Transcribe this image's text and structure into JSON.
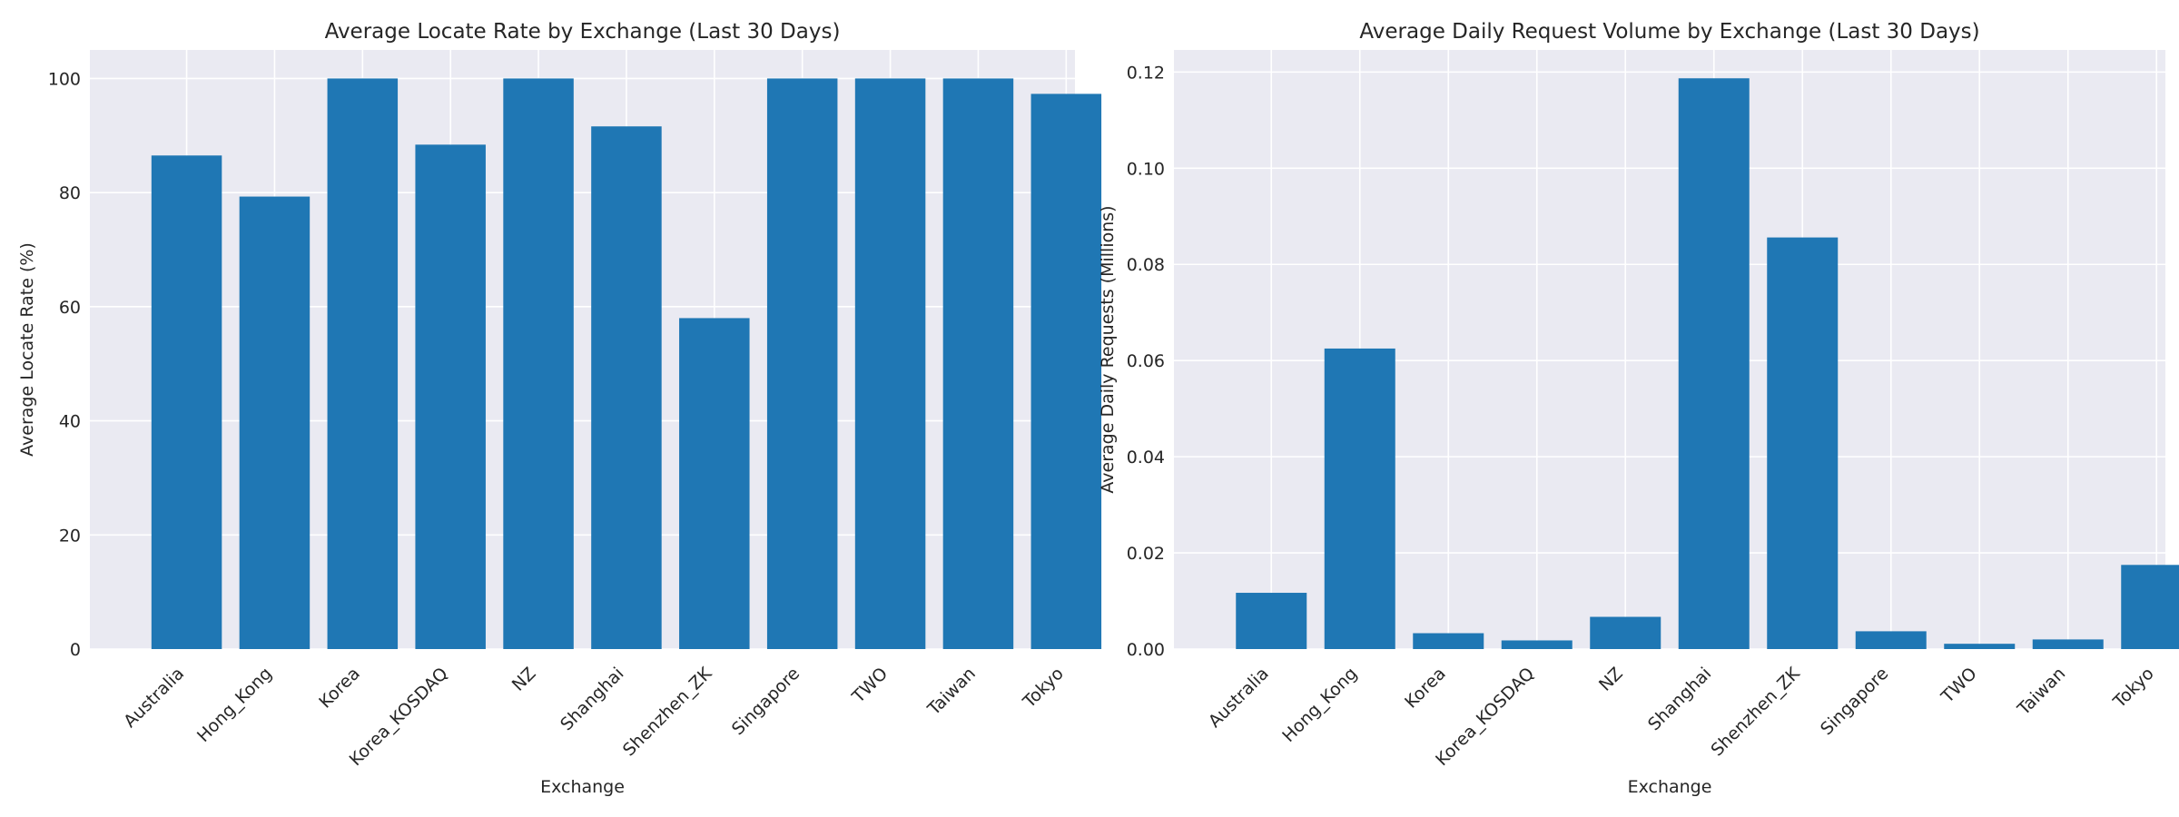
{
  "chart_data": [
    {
      "type": "bar",
      "title": "Average Locate Rate by Exchange (Last 30 Days)",
      "xlabel": "Exchange",
      "ylabel": "Average Locate Rate (%)",
      "categories": [
        "Australia",
        "Hong_Kong",
        "Korea",
        "Korea_KOSDAQ",
        "NZ",
        "Shanghai",
        "Shenzhen_ZK",
        "Singapore",
        "TWO",
        "Taiwan",
        "Tokyo"
      ],
      "values": [
        86.5,
        79.3,
        100,
        88.4,
        100,
        91.6,
        58.0,
        100,
        100,
        100,
        97.3
      ],
      "ylim": [
        0,
        105
      ],
      "yticks": [
        0,
        20,
        40,
        60,
        80,
        100
      ],
      "ytick_labels": [
        "0",
        "20",
        "40",
        "60",
        "80",
        "100"
      ],
      "grid": true,
      "color": "#1f77b4"
    },
    {
      "type": "bar",
      "title": "Average Daily Request Volume by Exchange (Last 30 Days)",
      "xlabel": "Exchange",
      "ylabel": "Average Daily Requests (Millions)",
      "categories": [
        "Australia",
        "Hong_Kong",
        "Korea",
        "Korea_KOSDAQ",
        "NZ",
        "Shanghai",
        "Shenzhen_ZK",
        "Singapore",
        "TWO",
        "Taiwan",
        "Tokyo"
      ],
      "values": [
        0.0117,
        0.0625,
        0.0033,
        0.0018,
        0.0067,
        0.1187,
        0.0856,
        0.0037,
        0.0011,
        0.002,
        0.0175
      ],
      "ylim": [
        0,
        0.1246
      ],
      "yticks": [
        0,
        0.02,
        0.04,
        0.06,
        0.08,
        0.1,
        0.12
      ],
      "ytick_labels": [
        "0.00",
        "0.02",
        "0.04",
        "0.06",
        "0.08",
        "0.10",
        "0.12"
      ],
      "grid": true,
      "color": "#1f77b4"
    }
  ]
}
